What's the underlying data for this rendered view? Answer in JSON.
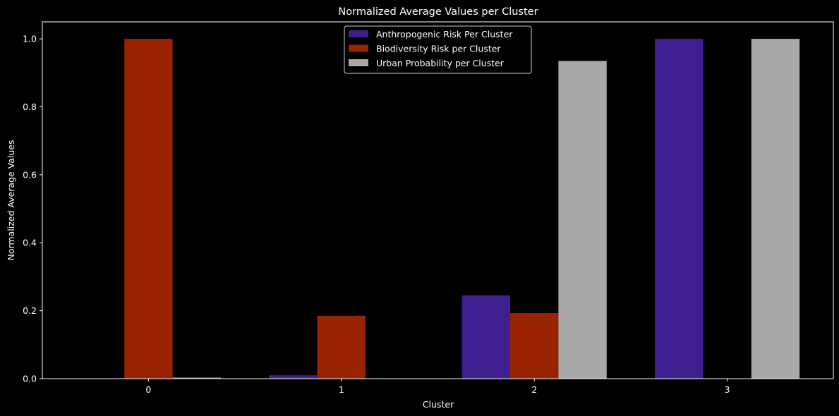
{
  "chart_data": {
    "type": "bar",
    "title": "Normalized Average Values per Cluster",
    "xlabel": "Cluster",
    "ylabel": "Normalized Average Values",
    "categories": [
      "0",
      "1",
      "2",
      "3"
    ],
    "ylim": [
      0,
      1.05
    ],
    "yticks": [
      "0.0",
      "0.2",
      "0.4",
      "0.6",
      "0.8",
      "1.0"
    ],
    "grid": false,
    "legend_position": "top-center",
    "series": [
      {
        "name": "Anthropogenic Risk Per Cluster",
        "color": "#3f1f8f",
        "values": [
          0.0,
          0.01,
          0.245,
          1.0
        ]
      },
      {
        "name": "Biodiversity Risk per Cluster",
        "color": "#992300",
        "values": [
          1.0,
          0.185,
          0.193,
          0.0
        ]
      },
      {
        "name": "Urban Probability per Cluster",
        "color": "#a9a9a9",
        "values": [
          0.003,
          0.0,
          0.935,
          1.0
        ]
      }
    ]
  }
}
